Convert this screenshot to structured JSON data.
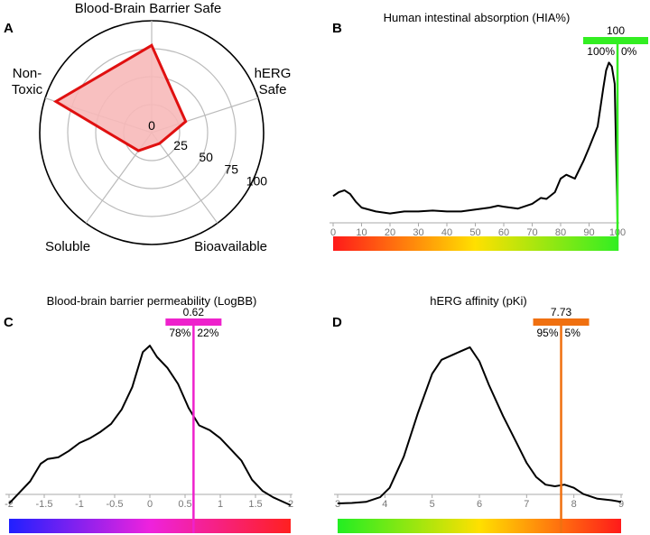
{
  "chart_data": [
    {
      "panel": "A",
      "type": "radar",
      "axes": [
        "Blood-Brain Barrier Safe",
        "hERG Safe",
        "Bioavailable",
        "Soluble",
        "Non-Toxic"
      ],
      "axis_labels": [
        [
          "Blood-Brain Barrier Safe"
        ],
        [
          "hERG",
          "Safe"
        ],
        [
          "Bioavailable"
        ],
        [
          "Soluble"
        ],
        [
          "Non-",
          "Toxic"
        ]
      ],
      "values": [
        78,
        32,
        12,
        20,
        90
      ],
      "rlim": [
        0,
        100
      ],
      "ticks": [
        0,
        25,
        50,
        75,
        100
      ],
      "colors": {
        "outline": "#e01010",
        "fill": "#f7b9b9"
      }
    },
    {
      "panel": "B",
      "type": "line",
      "title": "Human intestinal absorption (HIA%)",
      "xlim": [
        0,
        100
      ],
      "xticks": [
        0,
        10,
        20,
        30,
        40,
        50,
        60,
        70,
        80,
        90,
        100
      ],
      "x": [
        0,
        2,
        4,
        6,
        8,
        10,
        15,
        20,
        25,
        30,
        35,
        40,
        45,
        50,
        55,
        58,
        60,
        65,
        70,
        73,
        75,
        78,
        80,
        82,
        85,
        88,
        90,
        93,
        95,
        96,
        97,
        98,
        99,
        100
      ],
      "y": [
        12,
        14,
        15,
        13,
        9,
        6,
        4,
        3,
        4,
        4,
        4.5,
        4,
        4,
        5,
        6,
        7,
        6.5,
        5.5,
        8,
        11,
        10.5,
        14,
        21,
        23,
        21,
        30,
        37,
        48,
        68,
        77,
        81,
        79,
        70,
        0
      ],
      "ylim": [
        0,
        84
      ],
      "marker": {
        "value": 100,
        "label": "100",
        "left_pct": "100%",
        "right_pct": "0%",
        "color": "#33ee22"
      },
      "colorbar": [
        "#ff1a1a",
        "#ffe000",
        "#33ee22"
      ]
    },
    {
      "panel": "C",
      "type": "line",
      "title": "Blood-brain barrier permeability (LogBB)",
      "xlim": [
        -2,
        2
      ],
      "xticks": [
        -2,
        -1.5,
        -1,
        -0.5,
        0,
        0.5,
        1,
        1.5,
        2
      ],
      "x": [
        -2,
        -1.85,
        -1.7,
        -1.55,
        -1.45,
        -1.3,
        -1.15,
        -1.0,
        -0.85,
        -0.7,
        -0.55,
        -0.4,
        -0.25,
        -0.1,
        0,
        0.1,
        0.25,
        0.4,
        0.55,
        0.7,
        0.85,
        1.0,
        1.15,
        1.3,
        1.45,
        1.6,
        1.75,
        1.9,
        2
      ],
      "y": [
        1,
        8,
        15,
        26,
        29,
        30,
        34,
        39,
        42,
        46,
        51,
        60,
        74,
        96,
        100,
        93,
        86,
        76,
        61,
        50,
        47,
        42,
        35,
        28,
        16,
        9,
        5,
        2,
        0
      ],
      "ylim": [
        0,
        104
      ],
      "marker": {
        "value": 0.62,
        "label": "0.62",
        "left_pct": "78%",
        "right_pct": "22%",
        "color": "#ee22cc"
      },
      "colorbar": [
        "#2020ff",
        "#ee22dd",
        "#ff2020"
      ]
    },
    {
      "panel": "D",
      "type": "line",
      "title": "hERG affinity (pKi)",
      "xlim": [
        3,
        9
      ],
      "xticks": [
        3,
        4,
        5,
        6,
        7,
        8,
        9
      ],
      "x": [
        3,
        3.3,
        3.6,
        3.9,
        4.1,
        4.4,
        4.7,
        5.0,
        5.2,
        5.5,
        5.8,
        6.0,
        6.2,
        6.5,
        6.8,
        7.0,
        7.2,
        7.4,
        7.6,
        7.8,
        8.0,
        8.2,
        8.5,
        8.8,
        9.0
      ],
      "y": [
        0,
        0.3,
        1,
        4,
        10,
        30,
        58,
        83,
        92,
        96,
        100,
        91,
        76,
        56,
        38,
        26,
        17,
        12,
        11,
        12,
        10,
        6,
        3,
        2,
        1
      ],
      "ylim": [
        0,
        104
      ],
      "marker": {
        "value": 7.73,
        "label": "7.73",
        "left_pct": "95%",
        "right_pct": "5%",
        "color": "#f07010"
      },
      "colorbar": [
        "#22ee22",
        "#ffe000",
        "#ff1a1a"
      ]
    }
  ]
}
